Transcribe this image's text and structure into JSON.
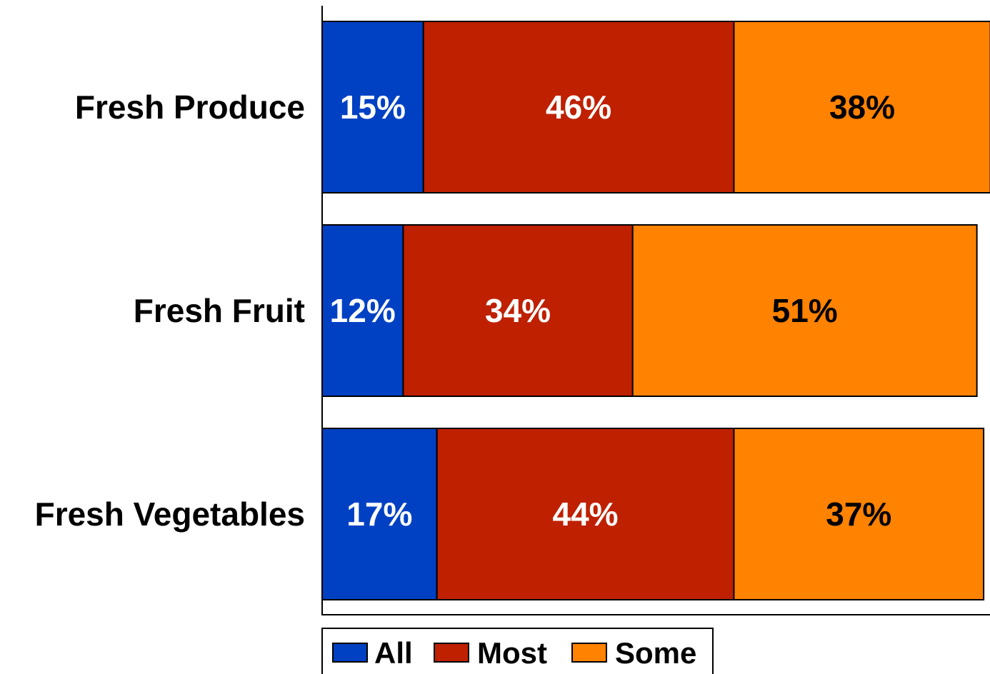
{
  "chart_data": {
    "type": "bar",
    "orientation": "horizontal",
    "stacked": true,
    "title": "",
    "xlabel": "",
    "ylabel": "",
    "categories": [
      "Fresh Produce",
      "Fresh Fruit",
      "Fresh Vegetables"
    ],
    "series": [
      {
        "name": "All",
        "color": "#0041C3",
        "label_color": "#FFFFFF",
        "values": [
          15,
          12,
          17
        ]
      },
      {
        "name": "Most",
        "color": "#BE2000",
        "label_color": "#FFFFFF",
        "values": [
          46,
          34,
          44
        ]
      },
      {
        "name": "Some",
        "color": "#FF8200",
        "label_color": "#000000",
        "values": [
          38,
          51,
          37
        ]
      }
    ],
    "value_labels": [
      [
        "15%",
        "12%",
        "17%"
      ],
      [
        "46%",
        "34%",
        "44%"
      ],
      [
        "38%",
        "51%",
        "37%"
      ]
    ],
    "xlim": [
      0,
      100
    ],
    "grid": false,
    "legend_position": "bottom"
  }
}
